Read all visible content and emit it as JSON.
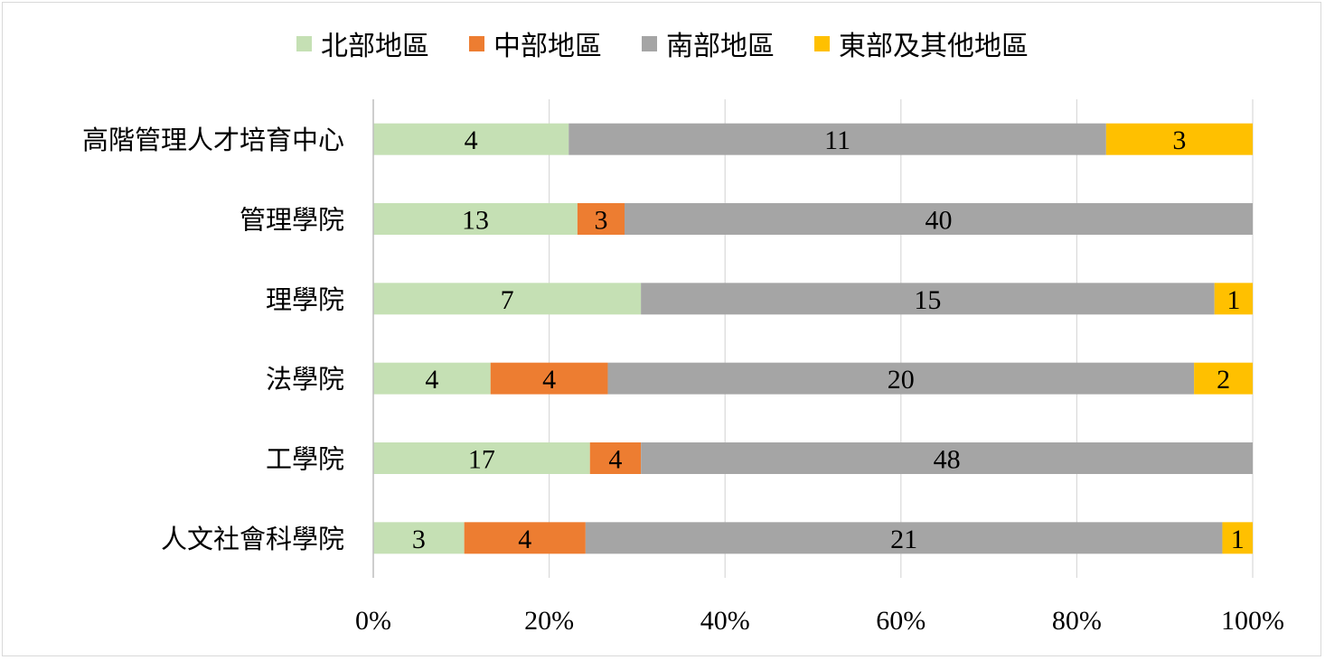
{
  "chart_data": {
    "type": "bar",
    "orientation": "horizontal",
    "stacking": "percent",
    "categories": [
      "人文社會科學院",
      "工學院",
      "法學院",
      "理學院",
      "管理學院",
      "高階管理人才培育中心"
    ],
    "series": [
      {
        "name": "北部地區",
        "color": "#c5e0b4",
        "values": [
          3,
          17,
          4,
          7,
          13,
          4
        ]
      },
      {
        "name": "中部地區",
        "color": "#ed7d31",
        "values": [
          4,
          4,
          4,
          0,
          3,
          0
        ]
      },
      {
        "name": "南部地區",
        "color": "#a5a5a5",
        "values": [
          21,
          48,
          20,
          15,
          40,
          11
        ]
      },
      {
        "name": "東部及其他地區",
        "color": "#ffc000",
        "values": [
          1,
          0,
          2,
          1,
          0,
          3
        ]
      }
    ],
    "x_ticks": [
      "0%",
      "20%",
      "40%",
      "60%",
      "80%",
      "100%"
    ],
    "xlim": [
      0,
      100
    ],
    "grid": "vertical",
    "legend_position": "top"
  }
}
